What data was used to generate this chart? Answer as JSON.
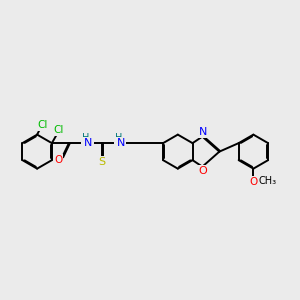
{
  "background_color": "#ebebeb",
  "bond_color": "#000000",
  "atom_colors": {
    "Cl": "#00bb00",
    "O": "#ff0000",
    "N": "#0000ff",
    "S": "#bbbb00",
    "H": "#007777"
  },
  "lw": 1.4
}
